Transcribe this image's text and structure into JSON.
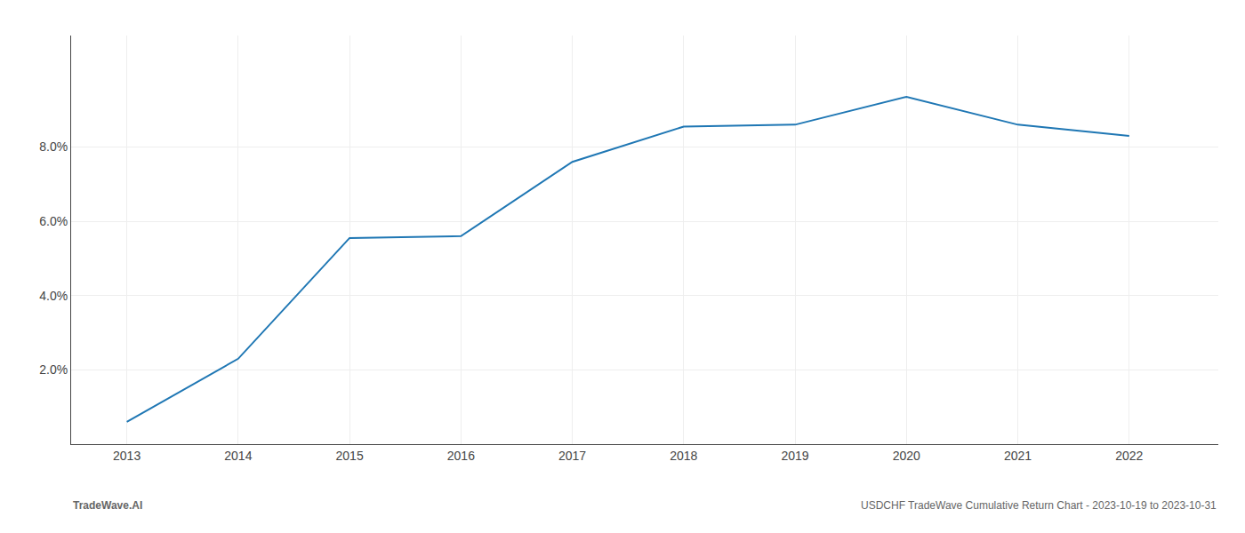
{
  "chart_data": {
    "type": "line",
    "x": [
      2013,
      2014,
      2015,
      2016,
      2017,
      2018,
      2019,
      2020,
      2021,
      2022
    ],
    "values": [
      0.6,
      2.3,
      5.55,
      5.6,
      7.6,
      8.55,
      8.6,
      9.35,
      8.6,
      8.3
    ],
    "xlim": [
      2012.5,
      2022.8
    ],
    "xticks": [
      2013,
      2014,
      2015,
      2016,
      2017,
      2018,
      2019,
      2020,
      2021,
      2022
    ],
    "ylim": [
      0.0,
      11.0
    ],
    "yticks": [
      {
        "value": 2.0,
        "label": "2.0%"
      },
      {
        "value": 4.0,
        "label": "4.0%"
      },
      {
        "value": 6.0,
        "label": "6.0%"
      },
      {
        "value": 8.0,
        "label": "8.0%"
      }
    ],
    "grid": true,
    "annotations": [
      "TradeWave.AI",
      "USDCHF TradeWave Cumulative Return Chart - 2023-10-19 to 2023-10-31"
    ]
  }
}
